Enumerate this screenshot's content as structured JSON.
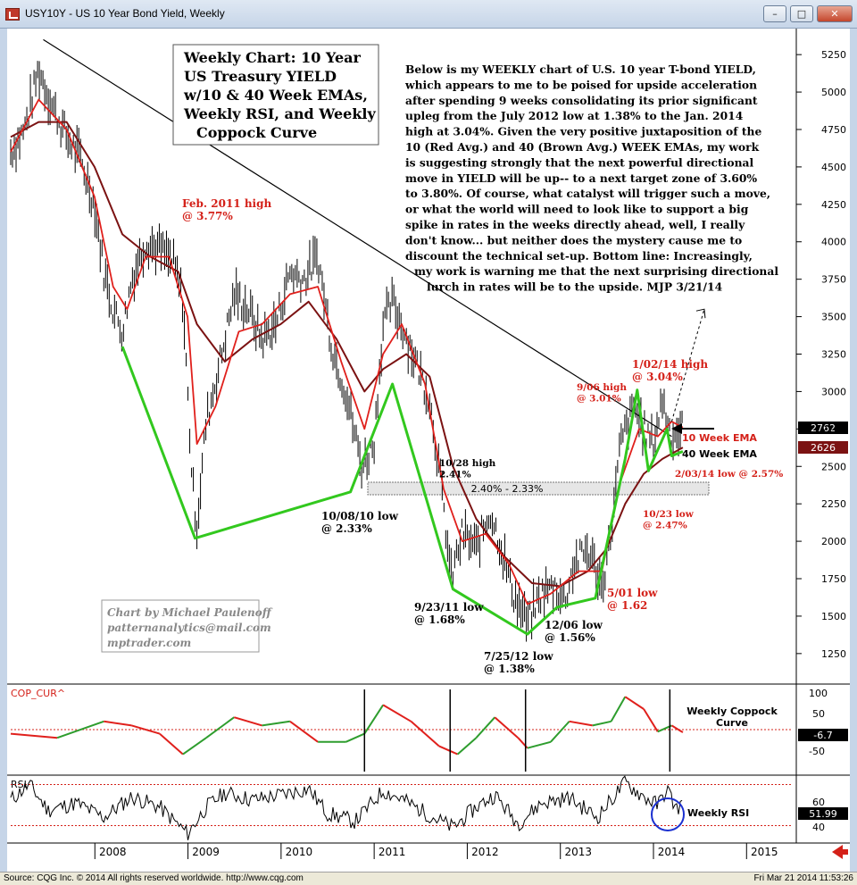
{
  "window": {
    "title": "USY10Y - US 10 Year Bond Yield, Weekly",
    "buttons": {
      "minimize": "–",
      "maximize": "□",
      "close": "✕"
    }
  },
  "statusbar": {
    "left": "Source: CQG Inc. © 2014 All rights reserved worldwide. http://www.cqg.com",
    "right": "Fri Mar 21 2014 11:53:26"
  },
  "colors": {
    "price_bars": "#000000",
    "ema10": "#e0201c",
    "ema40": "#7b1212",
    "trendlines": "#32c81e",
    "coppock_up": "#2e9d2e",
    "coppock_down": "#e0201c",
    "annot_red": "#d42018",
    "last_price_box": "#000000",
    "ema_box": "#7b1212"
  },
  "main": {
    "headline": [
      "Weekly Chart: 10 Year",
      "US Treasury YIELD",
      "w/10 & 40 Week EMAs,",
      "Weekly RSI, and Weekly",
      "Coppock Curve"
    ],
    "commentary": [
      "Below is my WEEKLY chart of U.S. 10 year T-bond YIELD,",
      "which appears to me to be poised for upside acceleration",
      "after spending 9 weeks consolidating its prior significant",
      "upleg from the July 2012 low at 1.38% to the Jan. 2014",
      "high at 3.04%. Given the very positive juxtaposition of the",
      "10 (Red Avg.) and 40 (Brown Avg.) WEEK EMAs, my work",
      "is suggesting strongly that the next powerful directional",
      "move in YIELD will be up-- to a next target zone of 3.60%",
      "to 3.80%. Of course, what catalyst will trigger such a move,",
      "or what the world will need to look like to support a big",
      "spike in rates in the weeks directly ahead, well, I really",
      "don't know... but neither does the mystery cause me to",
      "discount the technical set-up.  Bottom line:  Increasingly,",
      "my work is warning me that the next surprising directional",
      "lurch in rates will be to the upside.  MJP  3/21/14"
    ],
    "credit": [
      "Chart by Michael Paulenoff",
      "patternanalytics@mail.com",
      "mptrader.com"
    ],
    "zone_label": "2.40% - 2.33%",
    "ema10_label": "10 Week EMA",
    "ema40_label": "40 Week EMA",
    "last_price": "2762",
    "ema_value": "2626"
  },
  "annotations": [
    {
      "id": "feb2011",
      "lines": [
        "Feb. 2011 high",
        "@ 3.77%"
      ],
      "color": "red"
    },
    {
      "id": "oct2010",
      "lines": [
        "10/08/10 low",
        "@ 2.33%"
      ],
      "color": "black"
    },
    {
      "id": "oct28",
      "lines": [
        "10/28 high",
        "2.41%"
      ],
      "color": "black"
    },
    {
      "id": "sep2011",
      "lines": [
        "9/23/11 low",
        "@ 1.68%"
      ],
      "color": "black"
    },
    {
      "id": "jul2012",
      "lines": [
        "7/25/12 low",
        "@ 1.38%"
      ],
      "color": "black"
    },
    {
      "id": "dec06",
      "lines": [
        "12/06 low",
        "@ 1.56%"
      ],
      "color": "black"
    },
    {
      "id": "may01",
      "lines": [
        "5/01 low",
        "@ 1.62"
      ],
      "color": "red"
    },
    {
      "id": "sep06",
      "lines": [
        "9/06 high",
        "@ 3.01%"
      ],
      "color": "red"
    },
    {
      "id": "jan2014",
      "lines": [
        "1/02/14 high",
        "@ 3.04%"
      ],
      "color": "red"
    },
    {
      "id": "oct23",
      "lines": [
        "10/23 low",
        "@ 2.47%"
      ],
      "color": "red"
    },
    {
      "id": "feb2014",
      "lines": [
        "2/03/14 low @ 2.57%"
      ],
      "color": "red"
    }
  ],
  "coppock": {
    "label": "COP_CUR^",
    "title": [
      "Weekly Coppock",
      "Curve"
    ],
    "ticks": [
      "100",
      "50",
      "-50"
    ],
    "last_value": "-6.7"
  },
  "rsi": {
    "label": "RSI",
    "title": "Weekly RSI",
    "ticks": [
      "60",
      "40"
    ],
    "last_value": "51.99"
  },
  "chart_data": {
    "type": "line",
    "title": "Weekly Chart: 10 Year US Treasury YIELD w/10 & 40 Week EMAs, Weekly RSI, and Weekly Coppock Curve",
    "x_labels": [
      "2008",
      "2009",
      "2010",
      "2011",
      "2012",
      "2013",
      "2014",
      "2015"
    ],
    "y_ticks": [
      "5250",
      "5000",
      "4750",
      "4500",
      "4250",
      "4000",
      "3750",
      "3500",
      "3250",
      "3000",
      "2750",
      "2500",
      "2250",
      "2000",
      "1750",
      "1500",
      "1250"
    ],
    "ylim": [
      1100,
      5400
    ],
    "price_path": [
      [
        2007.0,
        4600
      ],
      [
        2007.15,
        4750
      ],
      [
        2007.3,
        5150
      ],
      [
        2007.45,
        4900
      ],
      [
        2007.6,
        4700
      ],
      [
        2007.75,
        4550
      ],
      [
        2007.9,
        4250
      ],
      [
        2008.0,
        3800
      ],
      [
        2008.1,
        3550
      ],
      [
        2008.2,
        3400
      ],
      [
        2008.3,
        3750
      ],
      [
        2008.45,
        4000
      ],
      [
        2008.6,
        3950
      ],
      [
        2008.75,
        3850
      ],
      [
        2008.85,
        3600
      ],
      [
        2008.95,
        2400
      ],
      [
        2009.0,
        2100
      ],
      [
        2009.1,
        2800
      ],
      [
        2009.25,
        3200
      ],
      [
        2009.4,
        3650
      ],
      [
        2009.55,
        3550
      ],
      [
        2009.7,
        3350
      ],
      [
        2009.85,
        3450
      ],
      [
        2010.0,
        3800
      ],
      [
        2010.15,
        3750
      ],
      [
        2010.3,
        3900
      ],
      [
        2010.45,
        3300
      ],
      [
        2010.6,
        3000
      ],
      [
        2010.77,
        2500
      ],
      [
        2010.9,
        2650
      ],
      [
        2011.0,
        3450
      ],
      [
        2011.1,
        3600
      ],
      [
        2011.2,
        3450
      ],
      [
        2011.35,
        3200
      ],
      [
        2011.5,
        2950
      ],
      [
        2011.6,
        2500
      ],
      [
        2011.73,
        1750
      ],
      [
        2011.85,
        2050
      ],
      [
        2012.0,
        1950
      ],
      [
        2012.15,
        2200
      ],
      [
        2012.25,
        2000
      ],
      [
        2012.4,
        1650
      ],
      [
        2012.55,
        1450
      ],
      [
        2012.7,
        1650
      ],
      [
        2012.85,
        1700
      ],
      [
        2012.95,
        1600
      ],
      [
        2013.05,
        1850
      ],
      [
        2013.2,
        1950
      ],
      [
        2013.35,
        1700
      ],
      [
        2013.45,
        2050
      ],
      [
        2013.55,
        2650
      ],
      [
        2013.7,
        2900
      ],
      [
        2013.8,
        2750
      ],
      [
        2013.9,
        2650
      ],
      [
        2014.0,
        2950
      ],
      [
        2014.1,
        2700
      ],
      [
        2014.22,
        2760
      ]
    ],
    "ema10_path": [
      [
        2007.0,
        4600
      ],
      [
        2007.3,
        4950
      ],
      [
        2007.6,
        4750
      ],
      [
        2007.9,
        4300
      ],
      [
        2008.1,
        3700
      ],
      [
        2008.25,
        3550
      ],
      [
        2008.45,
        3900
      ],
      [
        2008.7,
        3900
      ],
      [
        2008.9,
        3500
      ],
      [
        2009.0,
        2650
      ],
      [
        2009.2,
        2900
      ],
      [
        2009.45,
        3400
      ],
      [
        2009.7,
        3450
      ],
      [
        2010.0,
        3650
      ],
      [
        2010.3,
        3700
      ],
      [
        2010.55,
        3200
      ],
      [
        2010.8,
        2750
      ],
      [
        2011.0,
        3250
      ],
      [
        2011.2,
        3450
      ],
      [
        2011.45,
        3050
      ],
      [
        2011.65,
        2350
      ],
      [
        2011.85,
        2000
      ],
      [
        2012.1,
        2050
      ],
      [
        2012.35,
        1850
      ],
      [
        2012.55,
        1580
      ],
      [
        2012.8,
        1650
      ],
      [
        2013.1,
        1800
      ],
      [
        2013.35,
        1800
      ],
      [
        2013.55,
        2400
      ],
      [
        2013.75,
        2750
      ],
      [
        2013.95,
        2700
      ],
      [
        2014.1,
        2800
      ],
      [
        2014.22,
        2760
      ]
    ],
    "ema40_path": [
      [
        2007.0,
        4700
      ],
      [
        2007.3,
        4800
      ],
      [
        2007.6,
        4800
      ],
      [
        2007.9,
        4500
      ],
      [
        2008.2,
        4050
      ],
      [
        2008.5,
        3900
      ],
      [
        2008.8,
        3800
      ],
      [
        2009.0,
        3450
      ],
      [
        2009.3,
        3200
      ],
      [
        2009.6,
        3350
      ],
      [
        2009.9,
        3450
      ],
      [
        2010.2,
        3600
      ],
      [
        2010.5,
        3350
      ],
      [
        2010.8,
        3000
      ],
      [
        2011.0,
        3150
      ],
      [
        2011.25,
        3250
      ],
      [
        2011.5,
        3100
      ],
      [
        2011.75,
        2500
      ],
      [
        2012.0,
        2150
      ],
      [
        2012.3,
        1900
      ],
      [
        2012.6,
        1720
      ],
      [
        2012.9,
        1700
      ],
      [
        2013.2,
        1800
      ],
      [
        2013.4,
        1950
      ],
      [
        2013.6,
        2250
      ],
      [
        2013.8,
        2450
      ],
      [
        2014.0,
        2550
      ],
      [
        2014.22,
        2626
      ]
    ],
    "green_trendline": [
      [
        2008.2,
        3300
      ],
      [
        2008.98,
        2020
      ],
      [
        2010.65,
        2330
      ],
      [
        2011.1,
        3050
      ],
      [
        2011.75,
        1680
      ],
      [
        2012.55,
        1380
      ],
      [
        2012.87,
        1560
      ],
      [
        2013.28,
        1620
      ],
      [
        2013.6,
        2550
      ],
      [
        2013.73,
        3010
      ],
      [
        2013.85,
        2470
      ],
      [
        2014.05,
        2750
      ],
      [
        2014.1,
        2570
      ],
      [
        2014.22,
        2600
      ]
    ],
    "resistance_line": [
      [
        2007.35,
        5350
      ],
      [
        2014.1,
        2700
      ]
    ],
    "coppock_path": [
      [
        2007.0,
        -10
      ],
      [
        2007.5,
        -20
      ],
      [
        2008.0,
        20
      ],
      [
        2008.3,
        10
      ],
      [
        2008.6,
        -10
      ],
      [
        2008.85,
        -60
      ],
      [
        2009.1,
        -20
      ],
      [
        2009.4,
        30
      ],
      [
        2009.7,
        10
      ],
      [
        2010.0,
        20
      ],
      [
        2010.3,
        -30
      ],
      [
        2010.6,
        -30
      ],
      [
        2010.8,
        -10
      ],
      [
        2011.0,
        60
      ],
      [
        2011.3,
        20
      ],
      [
        2011.6,
        -40
      ],
      [
        2011.8,
        -60
      ],
      [
        2012.0,
        -20
      ],
      [
        2012.2,
        30
      ],
      [
        2012.45,
        -20
      ],
      [
        2012.55,
        -45
      ],
      [
        2012.8,
        -30
      ],
      [
        2013.0,
        20
      ],
      [
        2013.25,
        10
      ],
      [
        2013.45,
        20
      ],
      [
        2013.6,
        80
      ],
      [
        2013.8,
        50
      ],
      [
        2013.95,
        -5
      ],
      [
        2014.1,
        10
      ],
      [
        2014.22,
        -6.7
      ]
    ],
    "rsi_path": [
      [
        2007.0,
        55
      ],
      [
        2007.2,
        70
      ],
      [
        2007.4,
        45
      ],
      [
        2007.7,
        52
      ],
      [
        2008.0,
        38
      ],
      [
        2008.3,
        58
      ],
      [
        2008.6,
        48
      ],
      [
        2008.9,
        22
      ],
      [
        2009.1,
        48
      ],
      [
        2009.3,
        62
      ],
      [
        2009.6,
        55
      ],
      [
        2009.9,
        60
      ],
      [
        2010.2,
        66
      ],
      [
        2010.4,
        42
      ],
      [
        2010.7,
        34
      ],
      [
        2011.0,
        64
      ],
      [
        2011.2,
        56
      ],
      [
        2011.5,
        40
      ],
      [
        2011.75,
        28
      ],
      [
        2012.0,
        48
      ],
      [
        2012.2,
        60
      ],
      [
        2012.45,
        32
      ],
      [
        2012.7,
        52
      ],
      [
        2013.0,
        57
      ],
      [
        2013.3,
        38
      ],
      [
        2013.6,
        72
      ],
      [
        2013.8,
        58
      ],
      [
        2013.95,
        50
      ],
      [
        2014.05,
        66
      ],
      [
        2014.15,
        46
      ],
      [
        2014.22,
        52
      ]
    ],
    "rsi_levels": [
      70,
      30
    ],
    "coppock_zero": 0
  }
}
